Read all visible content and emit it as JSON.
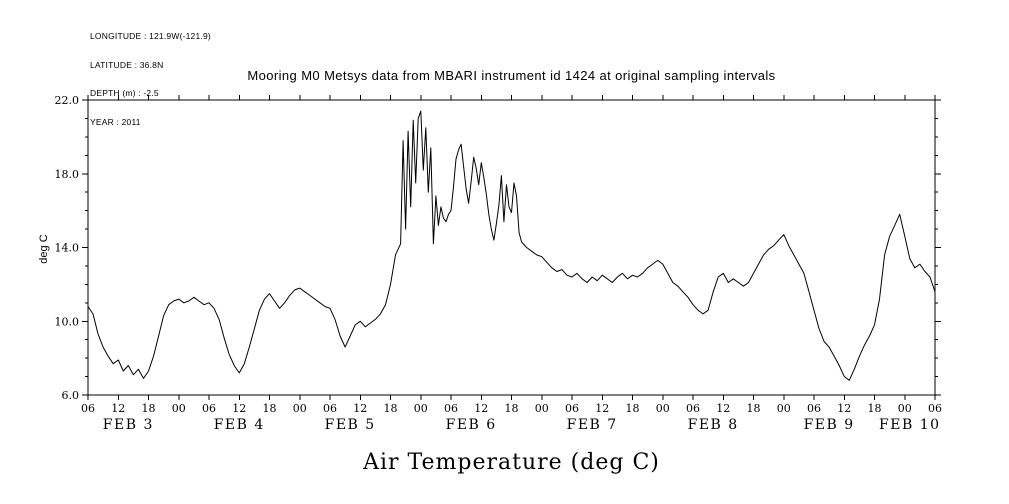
{
  "meta": {
    "longitude": "LONGITUDE : 121.9W(-121.9)",
    "latitude": "LATITUDE : 36.8N",
    "depth": "DEPTH (m) : -2.5",
    "year": "YEAR : 2011"
  },
  "title": "Mooring M0 Metsys data from MBARI instrument id 1424 at original sampling intervals",
  "bottom_label": "Air Temperature (deg C)",
  "colors": {
    "foreground": "#000000",
    "background": "#ffffff"
  },
  "chart_data": {
    "type": "line",
    "title": "Mooring M0 Metsys data from MBARI instrument id 1424 at original sampling intervals",
    "xlabel": "Air Temperature (deg C)",
    "ylabel": "deg C",
    "ylim": [
      6.0,
      22.0
    ],
    "xlim": [
      6,
      174
    ],
    "x_unit": "hours since 2011 FEB 3 00:00",
    "grid": false,
    "legend": false,
    "line_color": "#000000",
    "yticks": [
      6,
      10,
      14,
      18,
      22
    ],
    "ytick_labels": [
      "6.0",
      "10.0",
      "14.0",
      "18.0",
      "22.0"
    ],
    "x_tick_hours": [
      6,
      12,
      18,
      24,
      30,
      36,
      42,
      48,
      54,
      60,
      66,
      72,
      78,
      84,
      90,
      96,
      102,
      108,
      114,
      120,
      126,
      132,
      138,
      144,
      150,
      156,
      162,
      168,
      174
    ],
    "x_tick_labels": [
      "06",
      "12",
      "18",
      "00",
      "06",
      "12",
      "18",
      "00",
      "06",
      "12",
      "18",
      "00",
      "06",
      "12",
      "18",
      "00",
      "06",
      "12",
      "18",
      "00",
      "06",
      "12",
      "18",
      "00",
      "06",
      "12",
      "18",
      "00",
      "06"
    ],
    "day_labels": [
      {
        "label": "FEB 3",
        "hour": 14
      },
      {
        "label": "FEB 4",
        "hour": 36
      },
      {
        "label": "FEB 5",
        "hour": 58
      },
      {
        "label": "FEB 6",
        "hour": 82
      },
      {
        "label": "FEB 7",
        "hour": 106
      },
      {
        "label": "FEB 8",
        "hour": 130
      },
      {
        "label": "FEB 9",
        "hour": 153
      },
      {
        "label": "FEB 10",
        "hour": 169
      }
    ],
    "points": [
      [
        6,
        10.8
      ],
      [
        7,
        10.4
      ],
      [
        8,
        9.3
      ],
      [
        9,
        8.6
      ],
      [
        10,
        8.1
      ],
      [
        11,
        7.7
      ],
      [
        12,
        7.9
      ],
      [
        13,
        7.3
      ],
      [
        14,
        7.6
      ],
      [
        15,
        7.1
      ],
      [
        16,
        7.4
      ],
      [
        17,
        6.9
      ],
      [
        18,
        7.3
      ],
      [
        19,
        8.1
      ],
      [
        20,
        9.2
      ],
      [
        21,
        10.3
      ],
      [
        22,
        10.9
      ],
      [
        23,
        11.1
      ],
      [
        24,
        11.2
      ],
      [
        25,
        11.0
      ],
      [
        26,
        11.1
      ],
      [
        27,
        11.3
      ],
      [
        28,
        11.1
      ],
      [
        29,
        10.9
      ],
      [
        30,
        11.0
      ],
      [
        31,
        10.7
      ],
      [
        32,
        10.1
      ],
      [
        33,
        9.1
      ],
      [
        34,
        8.2
      ],
      [
        35,
        7.6
      ],
      [
        36,
        7.2
      ],
      [
        37,
        7.7
      ],
      [
        38,
        8.6
      ],
      [
        39,
        9.6
      ],
      [
        40,
        10.6
      ],
      [
        41,
        11.2
      ],
      [
        42,
        11.5
      ],
      [
        43,
        11.1
      ],
      [
        44,
        10.7
      ],
      [
        45,
        11.0
      ],
      [
        46,
        11.4
      ],
      [
        47,
        11.7
      ],
      [
        48,
        11.8
      ],
      [
        49,
        11.6
      ],
      [
        50,
        11.4
      ],
      [
        51,
        11.2
      ],
      [
        52,
        11.0
      ],
      [
        53,
        10.8
      ],
      [
        54,
        10.7
      ],
      [
        55,
        10.1
      ],
      [
        56,
        9.2
      ],
      [
        57,
        8.6
      ],
      [
        58,
        9.2
      ],
      [
        59,
        9.8
      ],
      [
        60,
        10.0
      ],
      [
        61,
        9.7
      ],
      [
        62,
        9.9
      ],
      [
        63,
        10.1
      ],
      [
        64,
        10.4
      ],
      [
        65,
        10.9
      ],
      [
        66,
        12.0
      ],
      [
        67,
        13.6
      ],
      [
        68,
        14.2
      ],
      [
        68.5,
        19.8
      ],
      [
        69,
        15.0
      ],
      [
        69.5,
        20.3
      ],
      [
        70,
        16.2
      ],
      [
        70.5,
        20.9
      ],
      [
        71,
        17.5
      ],
      [
        71.5,
        21.0
      ],
      [
        72,
        21.4
      ],
      [
        72.5,
        18.2
      ],
      [
        73,
        20.5
      ],
      [
        73.5,
        17.0
      ],
      [
        74,
        19.4
      ],
      [
        74.5,
        14.2
      ],
      [
        75,
        16.8
      ],
      [
        75.5,
        15.2
      ],
      [
        76,
        16.2
      ],
      [
        76.5,
        15.6
      ],
      [
        77,
        15.4
      ],
      [
        77.5,
        15.8
      ],
      [
        78,
        16.0
      ],
      [
        78.5,
        17.3
      ],
      [
        79,
        18.8
      ],
      [
        79.5,
        19.3
      ],
      [
        80,
        19.6
      ],
      [
        80.5,
        18.4
      ],
      [
        81,
        17.2
      ],
      [
        81.5,
        16.4
      ],
      [
        82,
        17.6
      ],
      [
        82.5,
        18.9
      ],
      [
        83,
        18.3
      ],
      [
        83.5,
        17.4
      ],
      [
        84,
        18.6
      ],
      [
        84.5,
        17.8
      ],
      [
        85,
        16.9
      ],
      [
        85.5,
        15.8
      ],
      [
        86,
        15.0
      ],
      [
        86.5,
        14.4
      ],
      [
        87,
        15.3
      ],
      [
        87.5,
        16.3
      ],
      [
        88,
        17.9
      ],
      [
        88.5,
        15.4
      ],
      [
        89,
        17.4
      ],
      [
        89.5,
        16.2
      ],
      [
        90,
        15.9
      ],
      [
        90.5,
        17.5
      ],
      [
        91,
        16.8
      ],
      [
        91.5,
        14.8
      ],
      [
        92,
        14.3
      ],
      [
        93,
        14.0
      ],
      [
        94,
        13.8
      ],
      [
        95,
        13.6
      ],
      [
        96,
        13.5
      ],
      [
        97,
        13.2
      ],
      [
        98,
        12.9
      ],
      [
        99,
        12.7
      ],
      [
        100,
        12.8
      ],
      [
        101,
        12.5
      ],
      [
        102,
        12.4
      ],
      [
        103,
        12.6
      ],
      [
        104,
        12.3
      ],
      [
        105,
        12.1
      ],
      [
        106,
        12.4
      ],
      [
        107,
        12.2
      ],
      [
        108,
        12.5
      ],
      [
        109,
        12.3
      ],
      [
        110,
        12.1
      ],
      [
        111,
        12.4
      ],
      [
        112,
        12.6
      ],
      [
        113,
        12.3
      ],
      [
        114,
        12.5
      ],
      [
        115,
        12.4
      ],
      [
        116,
        12.6
      ],
      [
        117,
        12.9
      ],
      [
        118,
        13.1
      ],
      [
        119,
        13.3
      ],
      [
        120,
        13.1
      ],
      [
        121,
        12.6
      ],
      [
        122,
        12.1
      ],
      [
        123,
        11.9
      ],
      [
        124,
        11.6
      ],
      [
        125,
        11.3
      ],
      [
        126,
        10.9
      ],
      [
        127,
        10.6
      ],
      [
        128,
        10.4
      ],
      [
        129,
        10.6
      ],
      [
        130,
        11.6
      ],
      [
        131,
        12.4
      ],
      [
        132,
        12.6
      ],
      [
        133,
        12.1
      ],
      [
        134,
        12.3
      ],
      [
        135,
        12.1
      ],
      [
        136,
        11.9
      ],
      [
        137,
        12.1
      ],
      [
        138,
        12.6
      ],
      [
        139,
        13.1
      ],
      [
        140,
        13.6
      ],
      [
        141,
        13.9
      ],
      [
        142,
        14.1
      ],
      [
        143,
        14.4
      ],
      [
        144,
        14.7
      ],
      [
        145,
        14.1
      ],
      [
        146,
        13.6
      ],
      [
        147,
        13.1
      ],
      [
        148,
        12.6
      ],
      [
        149,
        11.6
      ],
      [
        150,
        10.6
      ],
      [
        151,
        9.6
      ],
      [
        152,
        8.9
      ],
      [
        153,
        8.6
      ],
      [
        154,
        8.1
      ],
      [
        155,
        7.6
      ],
      [
        156,
        7.0
      ],
      [
        157,
        6.8
      ],
      [
        158,
        7.4
      ],
      [
        159,
        8.1
      ],
      [
        160,
        8.7
      ],
      [
        161,
        9.2
      ],
      [
        162,
        9.8
      ],
      [
        163,
        11.2
      ],
      [
        164,
        13.6
      ],
      [
        165,
        14.6
      ],
      [
        166,
        15.2
      ],
      [
        167,
        15.8
      ],
      [
        168,
        14.6
      ],
      [
        169,
        13.4
      ],
      [
        170,
        12.9
      ],
      [
        171,
        13.1
      ],
      [
        172,
        12.7
      ],
      [
        173,
        12.4
      ],
      [
        174,
        11.6
      ]
    ]
  }
}
